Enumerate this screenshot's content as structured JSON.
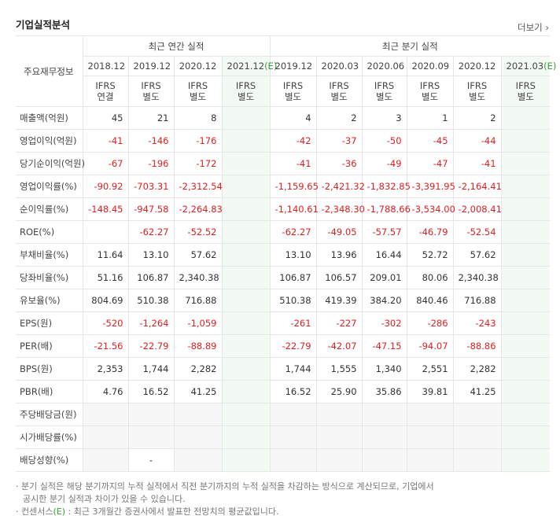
{
  "header": {
    "title": "기업실적분석",
    "more": "더보기"
  },
  "table": {
    "corner": "주요재무정보",
    "groups": [
      "최근 연간 실적",
      "최근 분기 실적"
    ],
    "periods": [
      {
        "date": "2018.12"
      },
      {
        "date": "2019.12"
      },
      {
        "date": "2020.12"
      },
      {
        "date": "2021.12",
        "mark": "(E)"
      },
      {
        "date": "2019.12"
      },
      {
        "date": "2020.03"
      },
      {
        "date": "2020.06"
      },
      {
        "date": "2020.09"
      },
      {
        "date": "2020.12"
      },
      {
        "date": "2021.03",
        "mark": "(E)"
      }
    ],
    "standards": [
      {
        "std": "IFRS",
        "basis": "연결"
      },
      {
        "std": "IFRS",
        "basis": "별도"
      },
      {
        "std": "IFRS",
        "basis": "별도"
      },
      {
        "std": "IFRS",
        "basis": "별도"
      },
      {
        "std": "IFRS",
        "basis": "별도"
      },
      {
        "std": "IFRS",
        "basis": "별도"
      },
      {
        "std": "IFRS",
        "basis": "별도"
      },
      {
        "std": "IFRS",
        "basis": "별도"
      },
      {
        "std": "IFRS",
        "basis": "별도"
      },
      {
        "std": "IFRS",
        "basis": "별도"
      }
    ],
    "sections": [
      {
        "rows": [
          {
            "label": "매출액(억원)",
            "values": [
              "45",
              "21",
              "8",
              null,
              "4",
              "2",
              "3",
              "1",
              "2",
              null
            ]
          },
          {
            "label": "영업이익(억원)",
            "values": [
              "-41",
              "-146",
              "-176",
              null,
              "-42",
              "-37",
              "-50",
              "-45",
              "-44",
              null
            ]
          },
          {
            "label": "당기순이익(억원)",
            "values": [
              "-67",
              "-196",
              "-172",
              null,
              "-41",
              "-36",
              "-49",
              "-47",
              "-41",
              null
            ]
          }
        ]
      },
      {
        "rows": [
          {
            "label": "영업이익률(%)",
            "values": [
              "-90.92",
              "-703.31",
              "-2,312.54",
              null,
              "-1,159.65",
              "-2,421.32",
              "-1,832.85",
              "-3,391.95",
              "-2,164.41",
              null
            ]
          },
          {
            "label": "순이익률(%)",
            "values": [
              "-148.45",
              "-947.58",
              "-2,264.83",
              null,
              "-1,140.61",
              "-2,348.30",
              "-1,788.66",
              "-3,534.00",
              "-2,008.41",
              null
            ]
          },
          {
            "label": "ROE(%)",
            "values": [
              null,
              "-62.27",
              "-52.52",
              null,
              "-62.27",
              "-49.05",
              "-57.57",
              "-46.79",
              "-52.54",
              null
            ]
          }
        ]
      },
      {
        "rows": [
          {
            "label": "부채비율(%)",
            "values": [
              "11.64",
              "13.10",
              "57.62",
              null,
              "13.10",
              "13.96",
              "16.44",
              "52.72",
              "57.62",
              null
            ]
          },
          {
            "label": "당좌비율(%)",
            "values": [
              "51.16",
              "106.87",
              "2,340.38",
              null,
              "106.87",
              "106.57",
              "209.01",
              "80.06",
              "2,340.38",
              null
            ]
          },
          {
            "label": "유보율(%)",
            "values": [
              "804.69",
              "510.38",
              "716.88",
              null,
              "510.38",
              "419.39",
              "384.20",
              "840.46",
              "716.88",
              null
            ]
          }
        ]
      },
      {
        "rows": [
          {
            "label": "EPS(원)",
            "values": [
              "-520",
              "-1,264",
              "-1,059",
              null,
              "-261",
              "-227",
              "-302",
              "-286",
              "-243",
              null
            ]
          },
          {
            "label": "PER(배)",
            "values": [
              "-21.56",
              "-22.79",
              "-88.89",
              null,
              "-22.79",
              "-42.07",
              "-47.15",
              "-94.07",
              "-88.86",
              null
            ]
          },
          {
            "label": "BPS(원)",
            "values": [
              "2,353",
              "1,744",
              "2,282",
              null,
              "1,744",
              "1,555",
              "1,340",
              "2,551",
              "2,282",
              null
            ]
          },
          {
            "label": "PBR(배)",
            "values": [
              "4.76",
              "16.52",
              "41.25",
              null,
              "16.52",
              "25.90",
              "35.86",
              "39.81",
              "41.25",
              null
            ]
          }
        ]
      },
      {
        "rows": [
          {
            "label": "주당배당금(원)",
            "values": [
              null,
              null,
              null,
              null,
              null,
              null,
              null,
              null,
              null,
              null
            ]
          },
          {
            "label": "시가배당률(%)",
            "values": [
              null,
              null,
              null,
              null,
              null,
              null,
              null,
              null,
              null,
              null
            ]
          },
          {
            "label": "배당성향(%)",
            "values": [
              null,
              "-",
              null,
              null,
              null,
              null,
              null,
              null,
              null,
              null
            ]
          }
        ]
      }
    ]
  },
  "notes": [
    {
      "text": "분기 실적은 해당 분기까지의 누적 실적에서 직전 분기까지의 누적 실적을 차감하는 방식으로 계산되므로, 기업에서 공시한 분기 실적과 차이가 있을 수 있습니다."
    },
    {
      "prefix": "컨센서스",
      "mark": "(E)",
      "text": " : 최근 3개월간 증권사에서 발표한 전망치의 평균값입니다."
    }
  ]
}
